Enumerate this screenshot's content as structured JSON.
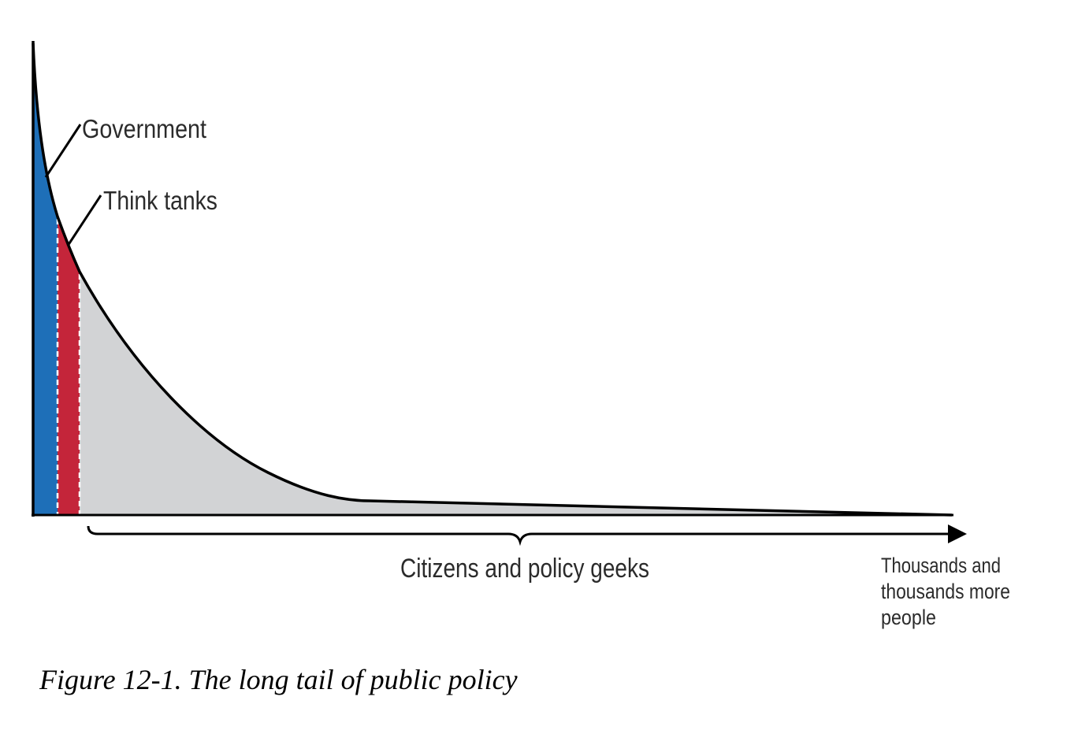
{
  "diagram": {
    "segments": [
      {
        "name": "Government",
        "label": "Government",
        "color": "#1e6fb8"
      },
      {
        "name": "Think tanks",
        "label": "Think tanks",
        "color": "#c4253a"
      },
      {
        "name": "Citizens and policy geeks",
        "label": "Citizens and policy geeks",
        "color": "#d2d3d5"
      }
    ],
    "axis_end_label_lines": [
      "Thousands and",
      "thousands more",
      "people"
    ]
  },
  "caption": "Figure 12-1. The long tail of public policy"
}
